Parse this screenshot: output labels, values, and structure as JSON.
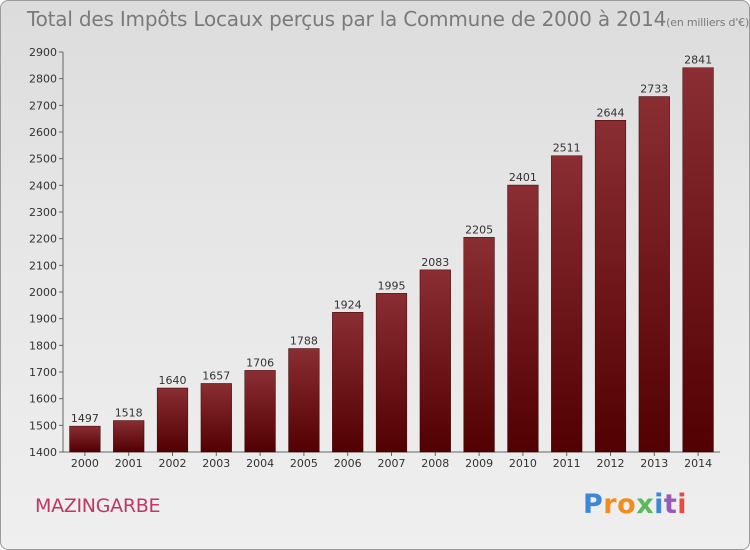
{
  "header": {
    "title": "Total des Impôts Locaux perçus par la Commune de 2000 à 2014",
    "unit": "(en milliers d'€)"
  },
  "footer": {
    "commune": "MAZINGARBE",
    "brand": "Proxiti"
  },
  "colors": {
    "bar_top": "#8a2e33",
    "bar_bottom": "#520002",
    "commune": "#c23663",
    "brand": [
      "#3d86d8",
      "#f28c1c",
      "#f28c1c",
      "#5cb85c",
      "#3d86d8",
      "#9b59b6",
      "#e84c3d"
    ]
  },
  "chart_data": {
    "type": "bar",
    "title": "Total des Impôts Locaux perçus par la Commune de 2000 à 2014",
    "xlabel": "",
    "ylabel": "",
    "ylim": [
      1400,
      2900
    ],
    "yticks": [
      1400,
      1500,
      1600,
      1700,
      1800,
      1900,
      2000,
      2100,
      2200,
      2300,
      2400,
      2500,
      2600,
      2700,
      2800,
      2900
    ],
    "categories": [
      "2000",
      "2001",
      "2002",
      "2003",
      "2004",
      "2005",
      "2006",
      "2007",
      "2008",
      "2009",
      "2010",
      "2011",
      "2012",
      "2013",
      "2014"
    ],
    "values": [
      1497,
      1518,
      1640,
      1657,
      1706,
      1788,
      1924,
      1995,
      2083,
      2205,
      2401,
      2511,
      2644,
      2733,
      2841
    ],
    "grid": false,
    "legend": "none"
  }
}
